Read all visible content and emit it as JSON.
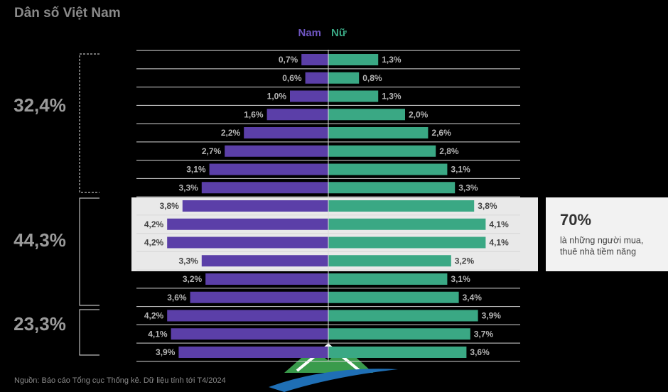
{
  "chart_data": {
    "type": "bar",
    "title": "Dân số Việt Nam",
    "series": [
      {
        "name": "Nam",
        "color": "#5b3fa8",
        "values": [
          0.7,
          0.6,
          1.0,
          1.6,
          2.2,
          2.7,
          3.1,
          3.3,
          3.8,
          4.2,
          4.2,
          3.3,
          3.2,
          3.6,
          4.2,
          4.1,
          3.9
        ],
        "value_labels": [
          "0,7%",
          "0,6%",
          "1,0%",
          "1,6%",
          "2,2%",
          "2,7%",
          "3,1%",
          "3,3%",
          "3,8%",
          "4,2%",
          "4,2%",
          "3,3%",
          "3,2%",
          "3,6%",
          "4,2%",
          "4,1%",
          "3,9%"
        ]
      },
      {
        "name": "Nữ",
        "color": "#3aa884",
        "values": [
          1.3,
          0.8,
          1.3,
          2.0,
          2.6,
          2.8,
          3.1,
          3.3,
          3.8,
          4.1,
          4.1,
          3.2,
          3.1,
          3.4,
          3.9,
          3.7,
          3.6
        ],
        "value_labels": [
          "1,3%",
          "0,8%",
          "1,3%",
          "2,0%",
          "2,6%",
          "2,8%",
          "3,1%",
          "3,3%",
          "3,8%",
          "4,1%",
          "4,1%",
          "3,2%",
          "3,1%",
          "3,4%",
          "3,9%",
          "3,7%",
          "3,6%"
        ]
      }
    ],
    "annotations": [
      "32,4%",
      "44,3%",
      "23,3%"
    ],
    "callout": {
      "title": "70%",
      "lines": [
        "là những người mua,",
        "thuê nhà tiềm năng"
      ]
    },
    "source": "Nguồn: Báo cáo Tổng cục Thống kê. Dữ liệu tính tới T4/2024"
  }
}
